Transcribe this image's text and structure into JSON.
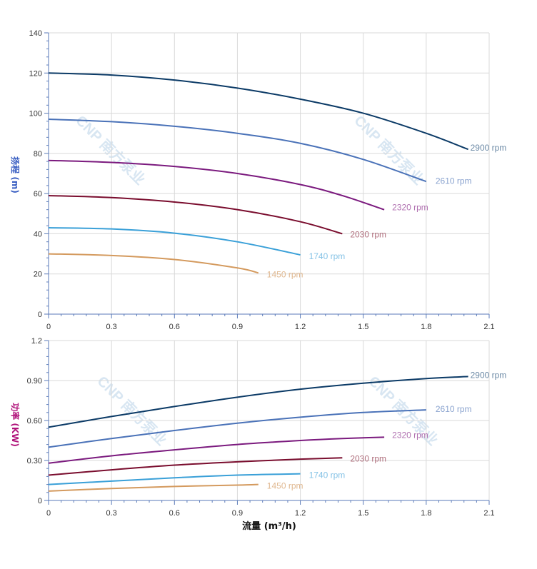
{
  "x_axis_title": "流量 (m³/h)",
  "watermark_text": "CNP 南方泵业",
  "chart_data": [
    {
      "type": "line",
      "panel": "head",
      "ylabel": "扬程 (m)",
      "ylabel_color": "#3a5fc2",
      "xlim": [
        0,
        2.1
      ],
      "ylim": [
        0,
        140
      ],
      "xticks": [
        "0",
        "0.3",
        "0.6",
        "0.9",
        "1.2",
        "1.5",
        "1.8",
        "2.1"
      ],
      "yticks": [
        "0",
        "20",
        "40",
        "60",
        "80",
        "100",
        "120",
        "140"
      ],
      "grid": true,
      "series": [
        {
          "name": "2900 rpm",
          "color": "#0b3a66",
          "label_color": "#6c8aa6",
          "x": [
            0,
            0.3,
            0.6,
            0.9,
            1.2,
            1.5,
            1.8,
            2.0
          ],
          "y": [
            120,
            119,
            116.5,
            112.5,
            107,
            100,
            90,
            82
          ]
        },
        {
          "name": "2610 rpm",
          "color": "#4a72b8",
          "label_color": "#8aa3cf",
          "x": [
            0,
            0.3,
            0.6,
            0.9,
            1.2,
            1.5,
            1.8
          ],
          "y": [
            97,
            95.8,
            93.5,
            90,
            85,
            77,
            66
          ]
        },
        {
          "name": "2320 rpm",
          "color": "#7b1a7e",
          "label_color": "#b070b0",
          "x": [
            0,
            0.3,
            0.6,
            0.9,
            1.2,
            1.4,
            1.6
          ],
          "y": [
            76.5,
            75.5,
            73.5,
            70,
            64.5,
            59,
            52
          ]
        },
        {
          "name": "2030 rpm",
          "color": "#7a0d2e",
          "label_color": "#b0707e",
          "x": [
            0,
            0.3,
            0.6,
            0.9,
            1.2,
            1.4
          ],
          "y": [
            59,
            58,
            55.8,
            52,
            46,
            40
          ]
        },
        {
          "name": "1740 rpm",
          "color": "#3aa0d8",
          "label_color": "#86c3e6",
          "x": [
            0,
            0.3,
            0.6,
            0.9,
            1.2
          ],
          "y": [
            43,
            42.4,
            40.3,
            36,
            29.5
          ]
        },
        {
          "name": "1450 rpm",
          "color": "#d49a5e",
          "label_color": "#e0b890",
          "x": [
            0,
            0.3,
            0.6,
            0.9,
            1.0
          ],
          "y": [
            30,
            29.2,
            27.2,
            23,
            20.5
          ]
        }
      ]
    },
    {
      "type": "line",
      "panel": "power",
      "ylabel": "功率 (KW)",
      "ylabel_color": "#b0127a",
      "xlim": [
        0,
        2.1
      ],
      "ylim": [
        0,
        1.2
      ],
      "xticks": [
        "0",
        "0.3",
        "0.6",
        "0.9",
        "1.2",
        "1.5",
        "1.8",
        "2.1"
      ],
      "yticks": [
        "0",
        "0.30",
        "0.60",
        "0.90",
        "1.2"
      ],
      "grid": true,
      "series": [
        {
          "name": "2900 rpm",
          "color": "#0b3a66",
          "label_color": "#6c8aa6",
          "x": [
            0,
            0.3,
            0.6,
            0.9,
            1.2,
            1.5,
            1.8,
            2.0
          ],
          "y": [
            0.55,
            0.63,
            0.705,
            0.775,
            0.835,
            0.88,
            0.915,
            0.93
          ]
        },
        {
          "name": "2610 rpm",
          "color": "#4a72b8",
          "label_color": "#8aa3cf",
          "x": [
            0,
            0.3,
            0.6,
            0.9,
            1.2,
            1.5,
            1.8
          ],
          "y": [
            0.4,
            0.465,
            0.525,
            0.58,
            0.625,
            0.66,
            0.68
          ]
        },
        {
          "name": "2320 rpm",
          "color": "#7b1a7e",
          "label_color": "#b070b0",
          "x": [
            0,
            0.3,
            0.6,
            0.9,
            1.2,
            1.4,
            1.6
          ],
          "y": [
            0.28,
            0.335,
            0.38,
            0.42,
            0.45,
            0.465,
            0.475
          ]
        },
        {
          "name": "2030 rpm",
          "color": "#7a0d2e",
          "label_color": "#b0707e",
          "x": [
            0,
            0.3,
            0.6,
            0.9,
            1.2,
            1.4
          ],
          "y": [
            0.19,
            0.23,
            0.265,
            0.29,
            0.31,
            0.32
          ]
        },
        {
          "name": "1740 rpm",
          "color": "#3aa0d8",
          "label_color": "#86c3e6",
          "x": [
            0,
            0.3,
            0.6,
            0.9,
            1.2
          ],
          "y": [
            0.12,
            0.145,
            0.17,
            0.19,
            0.2
          ]
        },
        {
          "name": "1450 rpm",
          "color": "#d49a5e",
          "label_color": "#e0b890",
          "x": [
            0,
            0.3,
            0.6,
            0.9,
            1.0
          ],
          "y": [
            0.07,
            0.09,
            0.105,
            0.115,
            0.12
          ]
        }
      ]
    }
  ]
}
